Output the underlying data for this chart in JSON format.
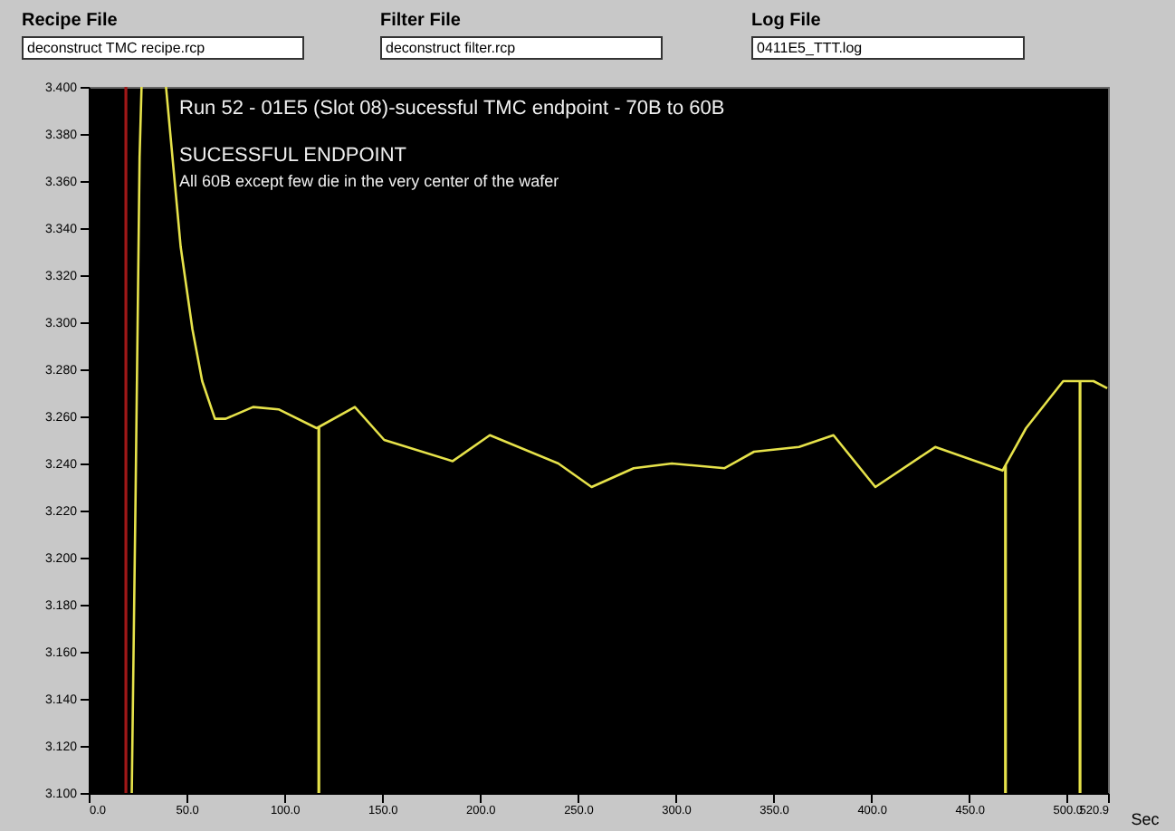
{
  "chart_data": {
    "type": "line",
    "title": "Run 52 - 01E5 (Slot 08)-sucessful TMC endpoint - 70B to 60B",
    "xlabel": "Sec",
    "annotations": [
      "Recipe File",
      "deconstruct TMC recipe.rcp",
      "Filter File",
      "deconstruct filter.rcp",
      "Log File",
      "0411E5_TTT.log",
      "SUCESSFUL ENDPOINT",
      "All 60B except few die in the very center of the wafer"
    ],
    "x": [
      22,
      24,
      26,
      27,
      33,
      39.5,
      47,
      53,
      58,
      64.5,
      70,
      84,
      97,
      116.5,
      136,
      151,
      186,
      205,
      240,
      257,
      278.5,
      298,
      325,
      340,
      363,
      380.6,
      402,
      432.6,
      467,
      479,
      498,
      513.5,
      520.5
    ],
    "series": [
      {
        "color": "#e6e24a",
        "values": [
          3.1,
          3.23,
          3.37,
          3.4,
          null,
          3.4,
          3.332,
          3.297,
          3.275,
          3.259,
          3.259,
          3.264,
          3.263,
          3.255,
          3.264,
          3.25,
          3.241,
          3.252,
          3.24,
          3.23,
          3.238,
          3.24,
          3.238,
          3.245,
          3.247,
          3.252,
          3.23,
          3.247,
          3.237,
          3.255,
          3.275,
          3.275,
          3.272
        ]
      }
    ],
    "ref_lines": [
      {
        "axis": "x",
        "value": 19,
        "color": "#a01818"
      },
      {
        "axis": "x",
        "value": 117.6,
        "color": "#e6e24a"
      },
      {
        "axis": "x",
        "value": 468.5,
        "color": "#e6e24a"
      },
      {
        "axis": "x",
        "value": 506.6,
        "color": "#e6e24a"
      }
    ],
    "xlim": [
      0,
      520.9
    ],
    "xticks": [
      {
        "value": 0,
        "label": "0.0"
      },
      {
        "value": 50,
        "label": "50.0"
      },
      {
        "value": 100,
        "label": "100.0"
      },
      {
        "value": 150,
        "label": "150.0"
      },
      {
        "value": 200,
        "label": "200.0"
      },
      {
        "value": 250,
        "label": "250.0"
      },
      {
        "value": 300,
        "label": "300.0"
      },
      {
        "value": 350,
        "label": "350.0"
      },
      {
        "value": 400,
        "label": "400.0"
      },
      {
        "value": 450,
        "label": "450.0"
      },
      {
        "value": 500,
        "label": "500.0"
      },
      {
        "value": 520.9,
        "label": "520.9"
      }
    ],
    "ylim": [
      3.1,
      3.4
    ],
    "yticks": [
      {
        "value": 3.1,
        "label": "3.100"
      },
      {
        "value": 3.12,
        "label": "3.120"
      },
      {
        "value": 3.14,
        "label": "3.140"
      },
      {
        "value": 3.16,
        "label": "3.160"
      },
      {
        "value": 3.18,
        "label": "3.180"
      },
      {
        "value": 3.2,
        "label": "3.200"
      },
      {
        "value": 3.22,
        "label": "3.220"
      },
      {
        "value": 3.24,
        "label": "3.240"
      },
      {
        "value": 3.26,
        "label": "3.260"
      },
      {
        "value": 3.28,
        "label": "3.280"
      },
      {
        "value": 3.3,
        "label": "3.300"
      },
      {
        "value": 3.32,
        "label": "3.320"
      },
      {
        "value": 3.34,
        "label": "3.340"
      },
      {
        "value": 3.36,
        "label": "3.360"
      },
      {
        "value": 3.38,
        "label": "3.380"
      },
      {
        "value": 3.4,
        "label": "3.400"
      }
    ],
    "marker": "none",
    "line_style": "solid"
  }
}
